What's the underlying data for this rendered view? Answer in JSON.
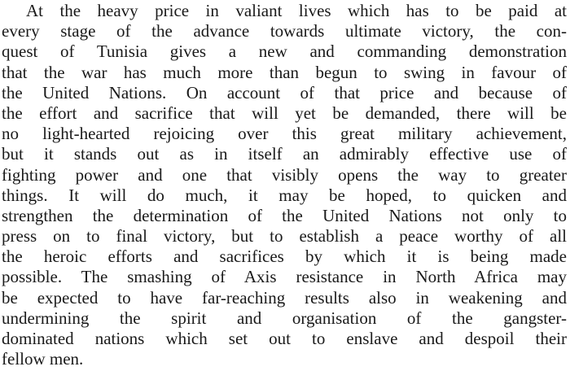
{
  "article": {
    "lines": [
      "At the heavy price in valiant lives which has to be paid at",
      "every stage of the advance towards ultimate victory, the con-",
      "quest of Tunisia gives a new and commanding demonstration",
      "that the war has much more than begun to swing in favour of",
      "the United Nations. On account of that price and because of",
      "the effort and sacrifice that will yet be demanded, there will be",
      "no light-hearted rejoicing over this great military achievement,",
      "but it stands out as in itself an admirably effective use of",
      "fighting power and one that visibly opens the way to greater",
      "things. It will do much, it may be hoped, to quicken and",
      "strengthen the determination of the United Nations not only to",
      "press on to final victory, but to establish a peace worthy of all",
      "the heroic efforts and sacrifices by which it is being made",
      "possible. The smashing of Axis resistance in North Africa may",
      "be expected to have far-reaching results also in weakening and",
      "undermining the spirit and organisation of the gangster-",
      "dominated nations which set out to enslave and despoil their",
      "fellow men."
    ]
  }
}
